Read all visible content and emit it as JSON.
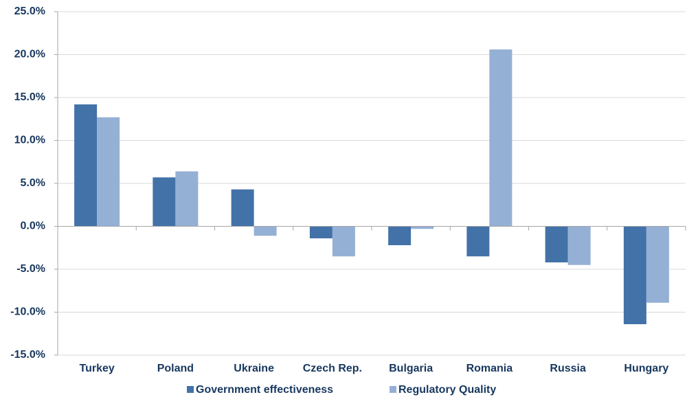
{
  "chart_data": {
    "type": "bar",
    "categories": [
      "Turkey",
      "Poland",
      "Ukraine",
      "Czech Rep.",
      "Bulgaria",
      "Romania",
      "Russia",
      "Hungary"
    ],
    "series": [
      {
        "name": "Government effectiveness",
        "color": "#4272a8",
        "values": [
          14.2,
          5.7,
          4.3,
          -1.4,
          -2.2,
          -3.5,
          -4.2,
          -11.4
        ]
      },
      {
        "name": "Regulatory Quality",
        "color": "#95b0d5",
        "values": [
          12.7,
          6.4,
          -1.1,
          -3.5,
          -0.3,
          20.6,
          -4.5,
          -8.9
        ]
      }
    ],
    "ylim": [
      -15,
      25
    ],
    "yticks": [
      {
        "value": -15,
        "label": "-15.0%"
      },
      {
        "value": -10,
        "label": "-10.0%"
      },
      {
        "value": -5,
        "label": "-5.0%"
      },
      {
        "value": 0,
        "label": "0.0%"
      },
      {
        "value": 5,
        "label": "5.0%"
      },
      {
        "value": 10,
        "label": "10.0%"
      },
      {
        "value": 15,
        "label": "15.0%"
      },
      {
        "value": 20,
        "label": "20.0%"
      },
      {
        "value": 25,
        "label": "25.0%"
      }
    ],
    "grid": true,
    "legend": "bottom"
  }
}
